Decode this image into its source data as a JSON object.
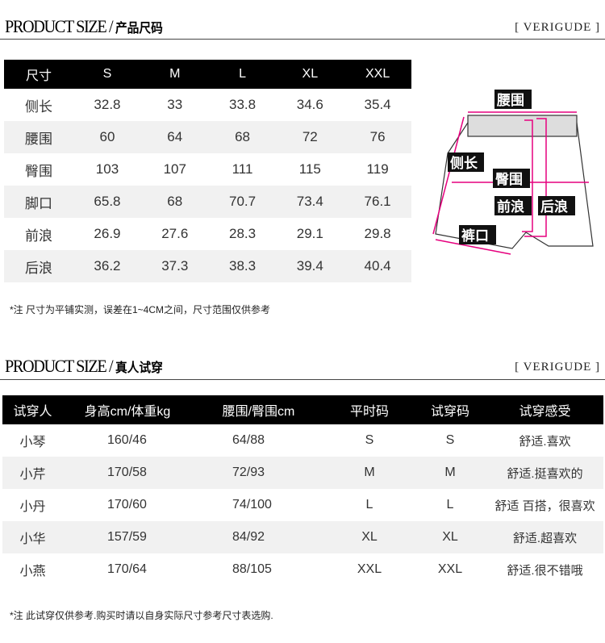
{
  "size_section": {
    "title_en": "PRODUCT SIZE",
    "title_cn": "产品尺码",
    "brand": "[ VERIGUDE ]",
    "headers": [
      "尺寸",
      "S",
      "M",
      "L",
      "XL",
      "XXL"
    ],
    "rows": [
      [
        "侧长",
        "32.8",
        "33",
        "33.8",
        "34.6",
        "35.4"
      ],
      [
        "腰围",
        "60",
        "64",
        "68",
        "72",
        "76"
      ],
      [
        "臀围",
        "103",
        "107",
        "111",
        "115",
        "119"
      ],
      [
        "脚口",
        "65.8",
        "68",
        "70.7",
        "73.4",
        "76.1"
      ],
      [
        "前浪",
        "26.9",
        "27.6",
        "28.3",
        "29.1",
        "29.8"
      ],
      [
        "后浪",
        "36.2",
        "37.3",
        "38.3",
        "39.4",
        "40.4"
      ]
    ],
    "note": "*注  尺寸为平铺实测，误差在1~4CM之间，尺寸范围仅供参考",
    "diagram_labels": {
      "waist": "腰围",
      "side": "侧长",
      "hip": "臀围",
      "front_rise": "前浪",
      "back_rise": "后浪",
      "hem": "裤口"
    }
  },
  "tryon_section": {
    "title_en": "PRODUCT SIZE",
    "title_cn": "真人试穿",
    "brand": "[ VERIGUDE ]",
    "headers": [
      "试穿人",
      "身高cm/体重kg",
      "腰围/臀围cm",
      "平时码",
      "试穿码",
      "试穿感受"
    ],
    "rows": [
      [
        "小琴",
        "160/46",
        "64/88",
        "S",
        "S",
        "舒适.喜欢"
      ],
      [
        "小芹",
        "170/58",
        "72/93",
        "M",
        "M",
        "舒适.挺喜欢的"
      ],
      [
        "小丹",
        "170/60",
        "74/100",
        "L",
        "L",
        "舒适 百搭，很喜欢"
      ],
      [
        "小华",
        "157/59",
        "84/92",
        "XL",
        "XL",
        "舒适.超喜欢"
      ],
      [
        "小燕",
        "170/64",
        "88/105",
        "XXL",
        "XXL",
        "舒适.很不错哦"
      ]
    ],
    "note": "*注  此试穿仅供参考.购买时请以自身实际尺寸参考尺寸表选购."
  },
  "colors": {
    "accent": "#e6007e",
    "header_bg": "#000000",
    "stripe": "#f1f1f1"
  }
}
